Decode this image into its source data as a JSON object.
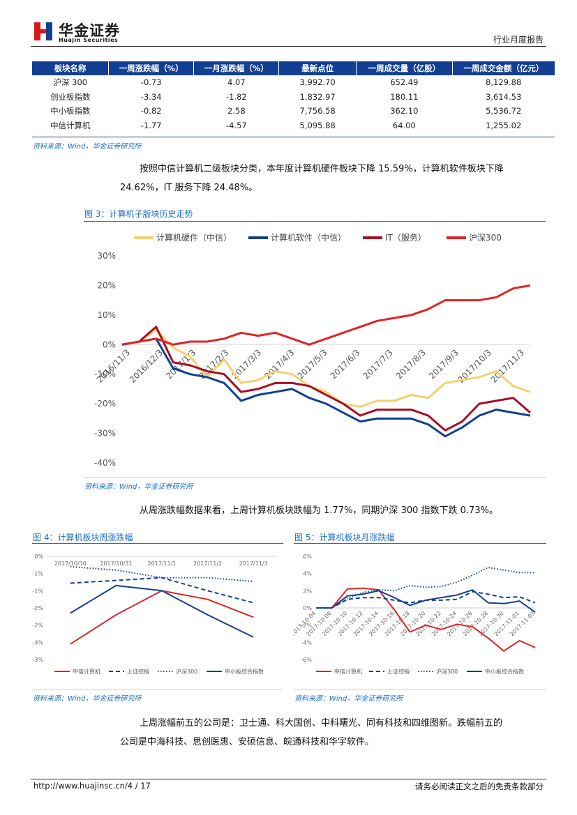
{
  "header": {
    "company_cn": "华金证券",
    "company_en": "Huajin Securities",
    "report_type": "行业月度报告",
    "colors": {
      "brand_red": "#d7191c",
      "brand_blue": "#123f91"
    }
  },
  "table": {
    "columns": [
      "板块名称",
      "一周涨跌幅（%）",
      "一月涨跌幅（%）",
      "最新点位",
      "一周成交量（亿股）",
      "一周成交金额（亿元）"
    ],
    "rows": [
      [
        "沪深 300",
        "-0.73",
        "4.07",
        "3,992.70",
        "652.49",
        "8,129.88"
      ],
      [
        "创业板指数",
        "-3.34",
        "-1.82",
        "1,832.97",
        "180.11",
        "3,614.53"
      ],
      [
        "中小板指数",
        "-0.82",
        "2.58",
        "7,756.58",
        "362.10",
        "5,536.72"
      ],
      [
        "中信计算机",
        "-1.77",
        "-4.57",
        "5,095.88",
        "64.00",
        "1,255.02"
      ]
    ],
    "source": "资料来源：Wind，华金证券研究所"
  },
  "para1": {
    "line1": "按照中信计算机二级板块分类，本年度计算机硬件板块下降 15.59%，计算机软件板块下降",
    "line2": "24.62%，IT 服务下降 24.48%。"
  },
  "fig3": {
    "title": "图 3：计算机子版块历史走势",
    "source": "资料来源：Wind，华金证券研究所"
  },
  "para2": "从周涨跌幅数据来看，上周计算机板块跌幅为 1.77%，同期沪深 300 指数下跌 0.73%。",
  "fig4": {
    "title": "图 4：计算机板块周涨跌幅",
    "source": "资料来源：Wind，华金证券研究所"
  },
  "fig5": {
    "title": "图 5：计算机板块月涨跌幅",
    "source": "资料来源：Wind，华金证券研究所"
  },
  "para3": {
    "line1": "上周涨幅前五的公司是：卫士通、科大国创、中科曙光、同有科技和四维图新。跌幅前五的",
    "line2": "公司是中海科技、思创医惠、安硕信息、皖通科技和华宇软件。"
  },
  "footer": {
    "url": "http://www.huajinsc.cn/4 / 17",
    "disclaimer": "请务必阅读正文之后的免责条款部分"
  },
  "chart_data": [
    {
      "id": "fig3",
      "type": "line",
      "title": "计算机子版块历史走势",
      "x_tick_labels": [
        "2016/11/3",
        "2016/12/3",
        "2017/1/3",
        "2017/2/3",
        "2017/3/3",
        "2017/4/3",
        "2017/5/3",
        "2017/6/3",
        "2017/7/3",
        "2017/8/3",
        "2017/9/3",
        "2017/10/3",
        "2017/11/3"
      ],
      "y_tick_labels": [
        "30%",
        "20%",
        "10%",
        "0%",
        "-10%",
        "-20%",
        "-30%",
        "-40%"
      ],
      "ylim": [
        -40,
        30
      ],
      "legend_position": "top",
      "series": [
        {
          "name": "计算机硬件（中信）",
          "color": "#f5d16f",
          "values": [
            0,
            1,
            5,
            -1,
            -4,
            -11,
            -5,
            -13,
            -12,
            -9,
            -10,
            -14,
            -16,
            -20,
            -21,
            -19,
            -19,
            -17,
            -18,
            -13,
            -12,
            -11,
            -9,
            -14,
            -16
          ]
        },
        {
          "name": "计算机软件（中信）",
          "color": "#123f91",
          "values": [
            0,
            1,
            2,
            -8,
            -10,
            -11,
            -13,
            -19,
            -17,
            -16,
            -15,
            -18,
            -20,
            -23,
            -26,
            -25,
            -25,
            -25,
            -27,
            -31,
            -28,
            -24,
            -22,
            -23,
            -24
          ]
        },
        {
          "name": "IT（服务）",
          "color": "#a50f23",
          "values": [
            0,
            1,
            6,
            -6,
            -7,
            -9,
            -10,
            -16,
            -15,
            -13,
            -13,
            -14,
            -17,
            -20,
            -24,
            -22,
            -22,
            -22,
            -24,
            -29,
            -26,
            -20,
            -19,
            -18,
            -23
          ]
        },
        {
          "name": "沪深300",
          "color": "#e02424",
          "values": [
            0,
            1,
            2,
            0,
            1,
            1,
            2,
            4,
            3,
            4,
            2,
            0,
            2,
            4,
            6,
            8,
            9,
            10,
            12,
            15,
            15,
            15,
            16,
            19,
            20
          ]
        }
      ]
    },
    {
      "id": "fig4",
      "type": "line",
      "title": "计算机板块周涨跌幅",
      "categories": [
        "2017/10/30",
        "2017/10/31",
        "2017/11/1",
        "2017/11/2",
        "2017/11/3"
      ],
      "y_tick_labels": [
        "0%",
        "-1%",
        "-1%",
        "-2%",
        "-2%",
        "-3%",
        "-3%"
      ],
      "ylim": [
        -3,
        0
      ],
      "legend_position": "bottom",
      "series": [
        {
          "name": "中信计算机",
          "color": "#e02424",
          "dash": "solid",
          "values": [
            -2.55,
            -1.7,
            -1.0,
            -1.25,
            -1.77
          ]
        },
        {
          "name": "上证综指",
          "color": "#123f91",
          "dash": "dashed",
          "values": [
            -0.78,
            -0.7,
            -0.62,
            -1.0,
            -1.35
          ]
        },
        {
          "name": "沪深300",
          "color": "#123f91",
          "dash": "dotted",
          "values": [
            -0.3,
            -0.4,
            -0.62,
            -0.62,
            -0.73
          ]
        },
        {
          "name": "中小板综合指数",
          "color": "#123f91",
          "dash": "solid",
          "values": [
            -1.65,
            -0.85,
            -1.0,
            -1.7,
            -2.35
          ]
        }
      ]
    },
    {
      "id": "fig5",
      "type": "line",
      "title": "计算机板块月涨跌幅",
      "categories": [
        "2017-10-04",
        "2017-10-06",
        "2017-10-10",
        "2017-10-12",
        "2017-10-14",
        "2017-10-16",
        "2017-10-18",
        "2017-10-20",
        "2017-10-22",
        "2017-10-24",
        "2017-10-26",
        "2017-10-28",
        "2017-10-30",
        "2017-11-01",
        "2017-11-03"
      ],
      "y_tick_labels": [
        "6%",
        "4%",
        "2%",
        "0%",
        "-2%",
        "-4%",
        "-6%"
      ],
      "ylim": [
        -6,
        6
      ],
      "legend_position": "bottom",
      "series": [
        {
          "name": "中信计算机",
          "color": "#e02424",
          "dash": "solid",
          "values": [
            0,
            0,
            2.2,
            2.3,
            2.1,
            -0.2,
            -2.8,
            -2.0,
            -2.5,
            -1.9,
            -2.2,
            -3.5,
            -5.0,
            -3.8,
            -4.6
          ]
        },
        {
          "name": "上证综指",
          "color": "#123f91",
          "dash": "dashed",
          "values": [
            0,
            0,
            1.0,
            1.2,
            1.2,
            0.9,
            0.6,
            0.9,
            0.9,
            1.0,
            1.9,
            1.6,
            1.2,
            1.3,
            0.6
          ]
        },
        {
          "name": "沪深300",
          "color": "#123f91",
          "dash": "dotted",
          "values": [
            0,
            0,
            1.1,
            1.8,
            2.1,
            2.0,
            2.6,
            2.4,
            2.5,
            3.0,
            3.8,
            4.7,
            4.4,
            4.1,
            4.1
          ]
        },
        {
          "name": "中小板综合指数",
          "color": "#123f91",
          "dash": "solid",
          "values": [
            0,
            0,
            1.4,
            1.6,
            2.0,
            1.2,
            0.3,
            0.9,
            1.2,
            1.5,
            2.1,
            0.6,
            0.5,
            0.8,
            -0.5
          ]
        }
      ]
    }
  ]
}
